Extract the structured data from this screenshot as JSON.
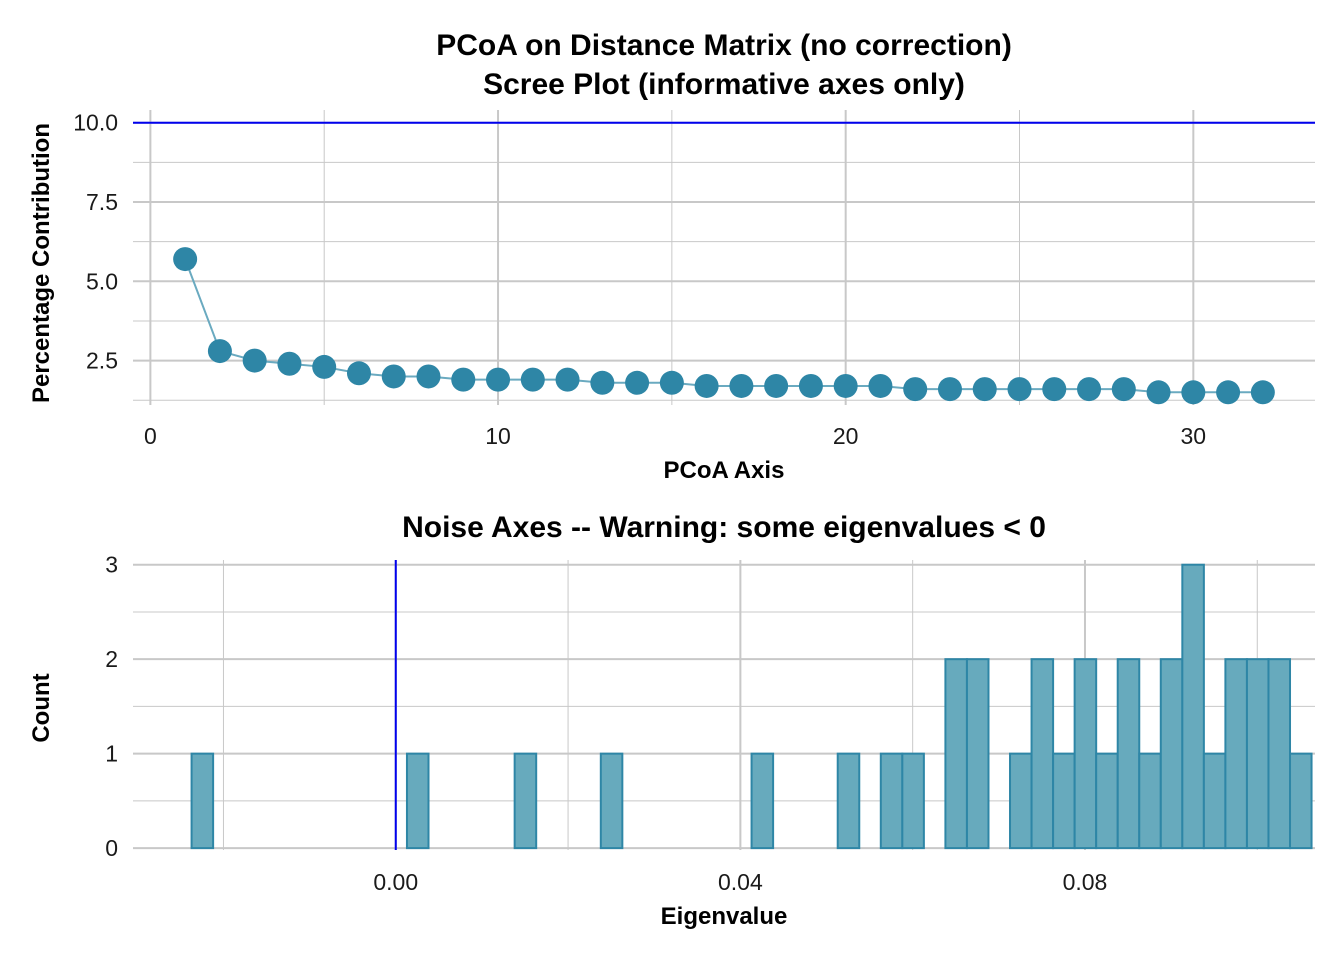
{
  "colors": {
    "point_fill": "#2E86A6",
    "line": "#6AAAC0",
    "bar_fill": "#67AABD",
    "bar_stroke": "#2E86A6",
    "ref_line": "#0000EE",
    "grid": "#C8C8C8"
  },
  "chart_data": [
    {
      "type": "line",
      "title_line1": "PCoA on Distance Matrix (no correction)",
      "title_line2": "Scree Plot (informative axes only)",
      "xlabel": "PCoA Axis",
      "ylabel": "Percentage Contribution",
      "xlim": [
        -0.5,
        33.5
      ],
      "ylim": [
        1.1,
        10.4
      ],
      "x_ticks": [
        0,
        10,
        20,
        30
      ],
      "x_tick_labels": [
        "0",
        "10",
        "20",
        "30"
      ],
      "y_ticks": [
        2.5,
        5.0,
        7.5,
        10.0
      ],
      "y_tick_labels": [
        "2.5",
        "5.0",
        "7.5",
        "10.0"
      ],
      "hline": 10.0,
      "x": [
        1,
        2,
        3,
        4,
        5,
        6,
        7,
        8,
        9,
        10,
        11,
        12,
        13,
        14,
        15,
        16,
        17,
        18,
        19,
        20,
        21,
        22,
        23,
        24,
        25,
        26,
        27,
        28,
        29,
        30,
        31,
        32
      ],
      "y": [
        5.7,
        2.8,
        2.5,
        2.4,
        2.3,
        2.1,
        2.0,
        2.0,
        1.9,
        1.9,
        1.9,
        1.9,
        1.8,
        1.8,
        1.8,
        1.7,
        1.7,
        1.7,
        1.7,
        1.7,
        1.7,
        1.6,
        1.6,
        1.6,
        1.6,
        1.6,
        1.6,
        1.6,
        1.5,
        1.5,
        1.5,
        1.5
      ],
      "grid": true
    },
    {
      "type": "bar",
      "title": "Noise Axes -- Warning: some eigenvalues < 0",
      "xlabel": "Eigenvalue",
      "ylabel": "Count",
      "xlim": [
        -0.0305,
        0.1067
      ],
      "ylim": [
        -0.02,
        3.05
      ],
      "x_ticks": [
        0.0,
        0.04,
        0.08
      ],
      "x_tick_labels": [
        "0.00",
        "0.04",
        "0.08"
      ],
      "y_ticks": [
        0,
        1,
        2,
        3
      ],
      "y_tick_labels": [
        "0",
        "1",
        "2",
        "3"
      ],
      "vline": 0.0,
      "bin_width": 0.0025,
      "bin_start": -0.0237,
      "counts": [
        1,
        0,
        0,
        0,
        0,
        0,
        0,
        0,
        0,
        0,
        1,
        0,
        0,
        0,
        0,
        1,
        0,
        0,
        0,
        1,
        0,
        0,
        0,
        0,
        0,
        0,
        1,
        0,
        0,
        0,
        1,
        0,
        1,
        1,
        0,
        2,
        2,
        0,
        1,
        2,
        1,
        2,
        1,
        2,
        1,
        2,
        3,
        1,
        2,
        2,
        2,
        1
      ],
      "grid": true
    }
  ]
}
